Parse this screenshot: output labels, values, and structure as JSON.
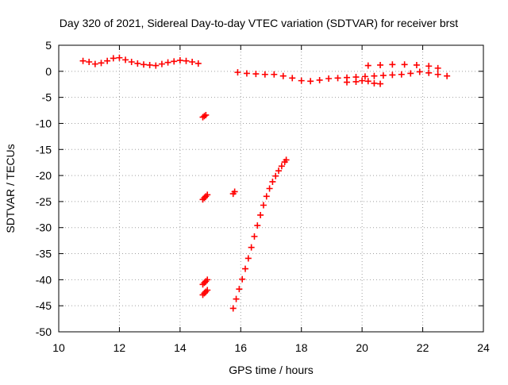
{
  "chart_data": {
    "type": "scatter",
    "title": "Day 320 of 2021, Sidereal Day-to-day VTEC variation (SDTVAR) for receiver brst",
    "xlabel": "GPS time / hours",
    "ylabel": "SDTVAR / TECUs",
    "xlim": [
      10,
      24
    ],
    "ylim": [
      -50,
      5
    ],
    "x_ticks": [
      10,
      12,
      14,
      16,
      18,
      20,
      22,
      24
    ],
    "y_ticks": [
      5,
      0,
      -5,
      -10,
      -15,
      -20,
      -25,
      -30,
      -35,
      -40,
      -45,
      -50
    ],
    "grid": true,
    "legend": "none",
    "marker": "plus",
    "color": "#ff0000",
    "series": [
      {
        "x": [
          10.8,
          11.0,
          11.2,
          11.4,
          11.6,
          11.8,
          12.0,
          12.2,
          12.4,
          12.6,
          12.8,
          13.0,
          13.2,
          13.4,
          13.6,
          13.8,
          14.0,
          14.2,
          14.4,
          14.6
        ],
        "y": [
          2.0,
          1.8,
          1.4,
          1.6,
          2.0,
          2.5,
          2.6,
          2.2,
          1.8,
          1.5,
          1.3,
          1.2,
          1.1,
          1.4,
          1.7,
          1.9,
          2.1,
          2.0,
          1.8,
          1.5
        ]
      },
      {
        "x": [
          15.9,
          16.2,
          16.5,
          16.8,
          17.1,
          17.4,
          17.7,
          18.0,
          18.3,
          18.6,
          18.9,
          19.2,
          19.5,
          19.8,
          20.1,
          20.4,
          20.7,
          21.0,
          21.3,
          21.6,
          21.9,
          22.2,
          22.5,
          22.8
        ],
        "y": [
          -0.2,
          -0.4,
          -0.5,
          -0.6,
          -0.6,
          -0.9,
          -1.3,
          -1.8,
          -1.9,
          -1.7,
          -1.4,
          -1.3,
          -1.2,
          -1.1,
          -1.0,
          -0.9,
          -0.8,
          -0.7,
          -0.6,
          -0.4,
          -0.1,
          -0.3,
          -0.6,
          -0.9
        ]
      },
      {
        "x": [
          19.5,
          19.8,
          20.0,
          20.2,
          20.4,
          20.6
        ],
        "y": [
          -2.1,
          -2.0,
          -1.8,
          -1.9,
          -2.3,
          -2.4
        ]
      },
      {
        "x": [
          20.2,
          20.6,
          21.0,
          21.4,
          21.8,
          22.2,
          22.5
        ],
        "y": [
          1.1,
          1.2,
          1.3,
          1.3,
          1.2,
          1.0,
          0.6
        ]
      },
      {
        "x": [
          14.75,
          14.8,
          14.85
        ],
        "y": [
          -8.8,
          -8.6,
          -8.4
        ]
      },
      {
        "x": [
          14.75,
          14.8,
          14.85,
          14.9
        ],
        "y": [
          -24.6,
          -24.3,
          -24.0,
          -23.7
        ]
      },
      {
        "x": [
          15.75,
          15.8
        ],
        "y": [
          -23.5,
          -23.1
        ]
      },
      {
        "x": [
          14.75,
          14.8,
          14.85,
          14.9
        ],
        "y": [
          -40.9,
          -40.6,
          -40.3,
          -40.0
        ]
      },
      {
        "x": [
          14.75,
          14.8,
          14.85,
          14.9
        ],
        "y": [
          -42.9,
          -42.6,
          -42.3,
          -42.0
        ]
      },
      {
        "x": [
          15.75,
          15.85,
          15.95,
          16.05,
          16.15,
          16.25,
          16.35,
          16.45,
          16.55,
          16.65,
          16.75,
          16.85,
          16.95,
          17.05,
          17.15,
          17.25,
          17.35,
          17.45,
          17.5
        ],
        "y": [
          -45.5,
          -43.7,
          -41.8,
          -39.9,
          -37.9,
          -35.9,
          -33.8,
          -31.7,
          -29.6,
          -27.6,
          -25.7,
          -24.0,
          -22.5,
          -21.2,
          -20.1,
          -19.1,
          -18.2,
          -17.4,
          -17.0
        ]
      }
    ]
  }
}
